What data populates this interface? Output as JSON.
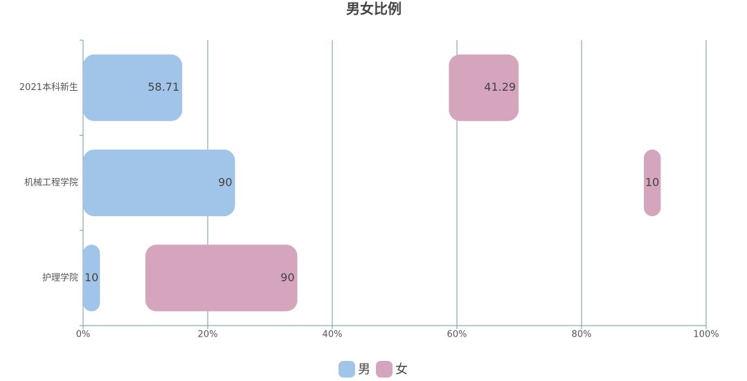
{
  "chart_data": {
    "type": "bar",
    "orientation": "horizontal",
    "stacked": true,
    "title": "男女比例",
    "categories": [
      "2021本科新生",
      "机械工程学院",
      "护理学院"
    ],
    "series": [
      {
        "name": "男",
        "color": "#a0c5e8",
        "values": [
          58.71,
          90,
          10
        ]
      },
      {
        "name": "女",
        "color": "#d5a4bd",
        "values": [
          41.29,
          10,
          90
        ]
      }
    ],
    "xlim": [
      0,
      100
    ],
    "xticks": [
      {
        "value": 0,
        "label": "0%"
      },
      {
        "value": 20,
        "label": "20%"
      },
      {
        "value": 40,
        "label": "40%"
      },
      {
        "value": 60,
        "label": "60%"
      },
      {
        "value": 80,
        "label": "80%"
      },
      {
        "value": 100,
        "label": "100%"
      }
    ],
    "grid": true,
    "legend": "bottom"
  }
}
